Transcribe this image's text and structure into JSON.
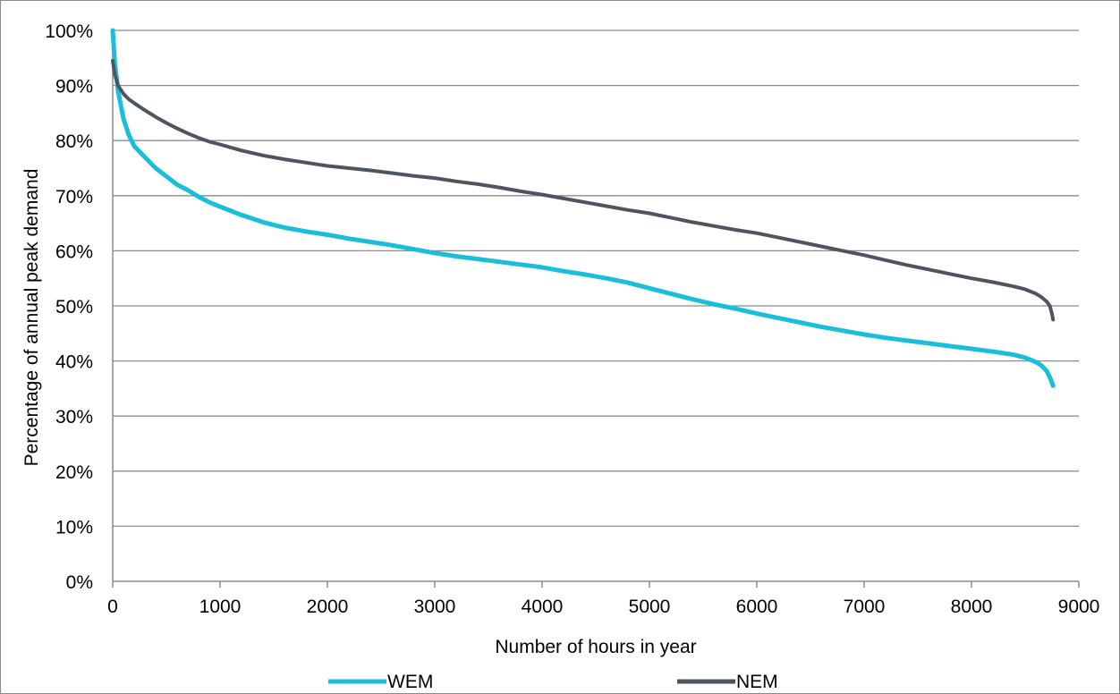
{
  "chart_data": {
    "type": "line",
    "title": "",
    "xlabel": "Number of hours in year",
    "ylabel": "Percentage of annual peak demand",
    "xlim": [
      0,
      9000
    ],
    "ylim": [
      0,
      100
    ],
    "x_ticks": [
      0,
      1000,
      2000,
      3000,
      4000,
      5000,
      6000,
      7000,
      8000,
      9000
    ],
    "x_tick_labels": [
      "0",
      "1000",
      "2000",
      "3000",
      "4000",
      "5000",
      "6000",
      "7000",
      "8000",
      "9000"
    ],
    "y_ticks": [
      0,
      10,
      20,
      30,
      40,
      50,
      60,
      70,
      80,
      90,
      100
    ],
    "y_tick_labels": [
      "0%",
      "10%",
      "20%",
      "30%",
      "40%",
      "50%",
      "60%",
      "70%",
      "80%",
      "90%",
      "100%"
    ],
    "grid": "horizontal",
    "legend_position": "bottom",
    "series": [
      {
        "name": "WEM",
        "color": "#19bfd9",
        "x": [
          0,
          20,
          50,
          100,
          150,
          200,
          300,
          400,
          500,
          600,
          700,
          800,
          900,
          1000,
          1200,
          1400,
          1600,
          1800,
          2000,
          2200,
          2400,
          2600,
          2800,
          3000,
          3200,
          3400,
          3600,
          3800,
          4000,
          4200,
          4400,
          4600,
          4800,
          5000,
          5200,
          5400,
          5600,
          5800,
          6000,
          6200,
          6400,
          6600,
          6800,
          7000,
          7200,
          7400,
          7600,
          7800,
          8000,
          8200,
          8400,
          8500,
          8600,
          8650,
          8700,
          8730,
          8750,
          8760
        ],
        "y": [
          100,
          94,
          89,
          84,
          81,
          79,
          77,
          75,
          73.5,
          72,
          71,
          69.8,
          68.8,
          68,
          66.5,
          65.2,
          64.2,
          63.5,
          62.9,
          62.2,
          61.6,
          61,
          60.3,
          59.6,
          59,
          58.5,
          58,
          57.5,
          57,
          56.3,
          55.7,
          55,
          54.2,
          53.2,
          52.2,
          51.2,
          50.3,
          49.5,
          48.6,
          47.8,
          47,
          46.2,
          45.5,
          44.8,
          44.2,
          43.7,
          43.2,
          42.7,
          42.2,
          41.7,
          41.1,
          40.6,
          39.8,
          39.2,
          38.2,
          37,
          36,
          35.5
        ]
      },
      {
        "name": "NEM",
        "color": "#4d5560",
        "x": [
          0,
          20,
          50,
          100,
          150,
          200,
          300,
          400,
          500,
          600,
          700,
          800,
          900,
          1000,
          1200,
          1400,
          1600,
          1800,
          2000,
          2200,
          2400,
          2600,
          2800,
          3000,
          3200,
          3400,
          3600,
          3800,
          4000,
          4200,
          4400,
          4600,
          4800,
          5000,
          5200,
          5400,
          5600,
          5800,
          6000,
          6200,
          6400,
          6600,
          6800,
          7000,
          7200,
          7400,
          7600,
          7800,
          8000,
          8200,
          8400,
          8500,
          8600,
          8650,
          8700,
          8730,
          8750,
          8760
        ],
        "y": [
          94.5,
          92,
          90,
          88.5,
          87.5,
          86.8,
          85.5,
          84.3,
          83.2,
          82.2,
          81.3,
          80.5,
          79.8,
          79.3,
          78.2,
          77.3,
          76.6,
          76,
          75.4,
          75,
          74.6,
          74.1,
          73.6,
          73.2,
          72.6,
          72.1,
          71.5,
          70.8,
          70.2,
          69.5,
          68.8,
          68.1,
          67.4,
          66.8,
          66,
          65.2,
          64.5,
          63.8,
          63.2,
          62.4,
          61.6,
          60.8,
          60,
          59.2,
          58.3,
          57.4,
          56.6,
          55.8,
          55,
          54.3,
          53.5,
          53,
          52.2,
          51.6,
          50.8,
          50,
          48.5,
          47.5
        ]
      }
    ]
  }
}
